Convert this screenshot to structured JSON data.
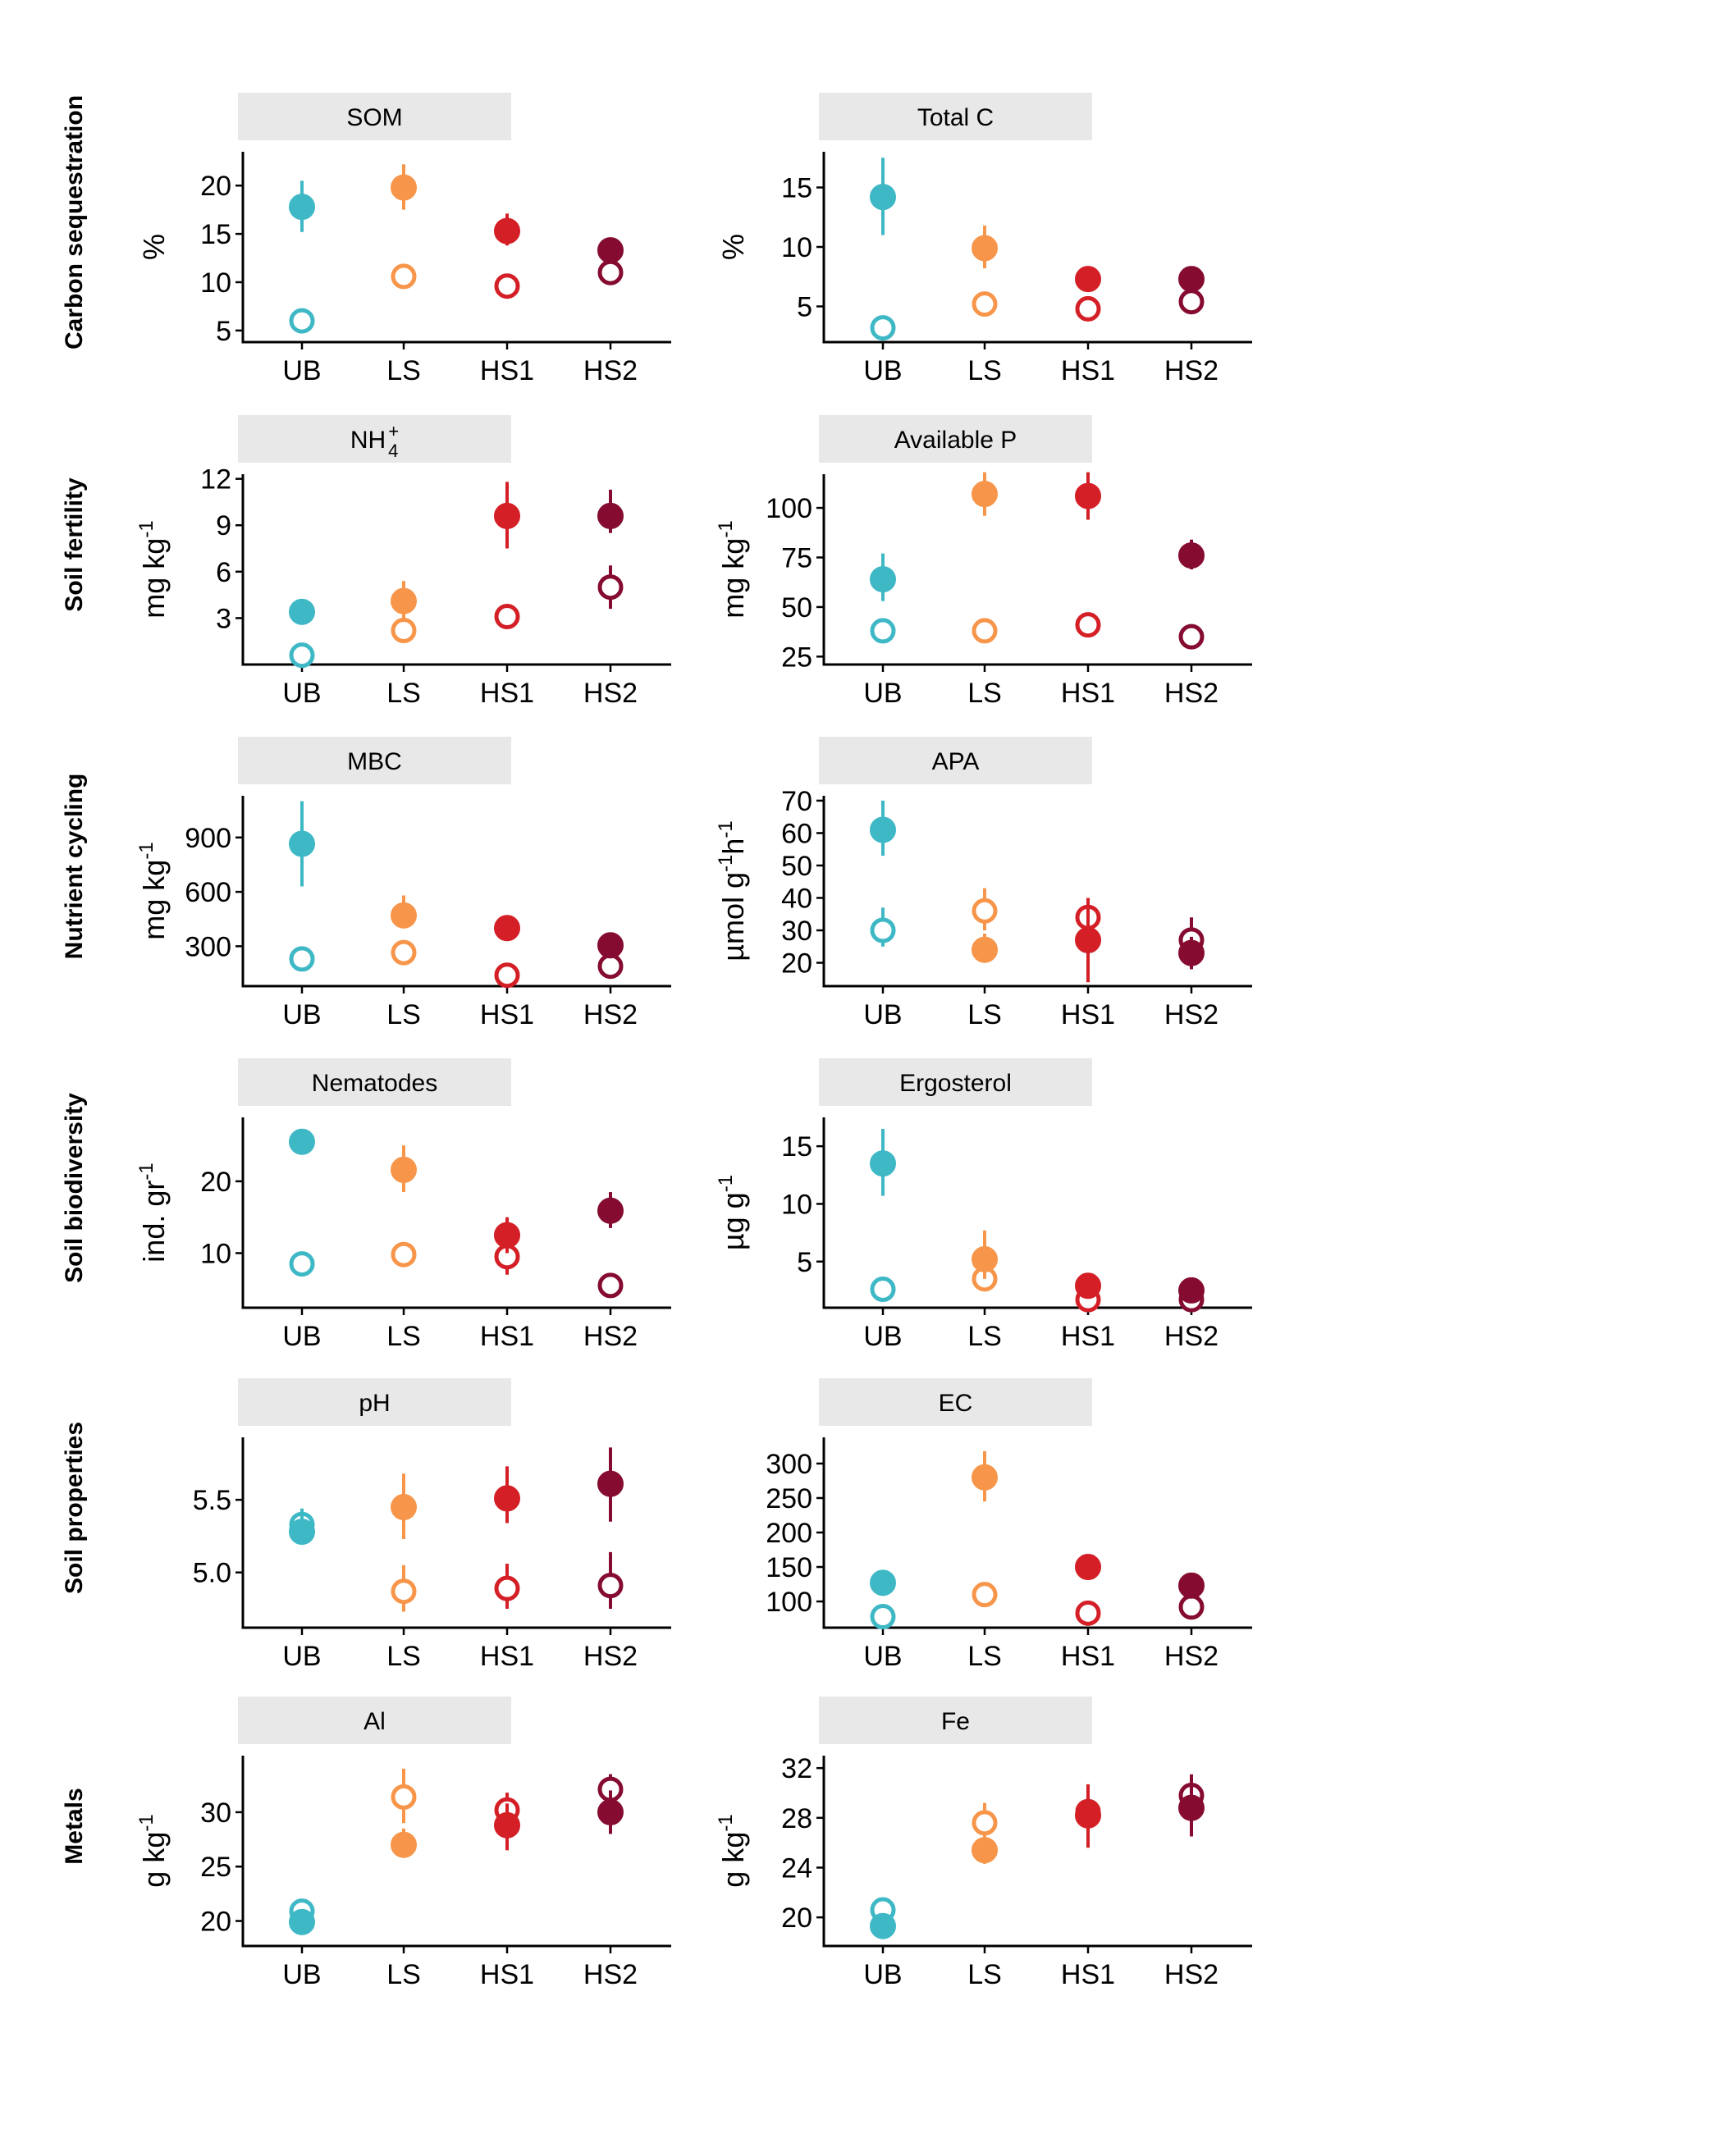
{
  "colors": {
    "UB": "#3fb8c6",
    "LS": "#f7964a",
    "HS1": "#d41f26",
    "HS2": "#850c30",
    "strip_bg": "#e8e8e8"
  },
  "legend_note": "filled circle = one treatment series, open circle = other treatment series (no printed legend)",
  "row_labels": [
    "Carbon sequestration",
    "Soil fertility",
    "Nutrient cycling",
    "Soil biodiversity",
    "Soil properties",
    "Metals"
  ],
  "chart_data": [
    {
      "type": "scatter",
      "title": "SOM",
      "ylabel": "%",
      "categories": [
        "UB",
        "LS",
        "HS1",
        "HS2"
      ],
      "yticks": [
        5,
        10,
        15,
        20
      ],
      "ylim": [
        3.8,
        23.5
      ],
      "series": [
        {
          "style": "filled",
          "values": [
            17.8,
            19.8,
            15.3,
            13.3
          ],
          "err": [
            [
              15.2,
              20.5
            ],
            [
              17.5,
              22.2
            ],
            [
              13.8,
              17.1
            ],
            [
              12.4,
              14.3
            ]
          ]
        },
        {
          "style": "open",
          "values": [
            6.0,
            10.6,
            9.6,
            11.0
          ],
          "err": null
        }
      ]
    },
    {
      "type": "scatter",
      "title": "Total C",
      "ylabel": "%",
      "categories": [
        "UB",
        "LS",
        "HS1",
        "HS2"
      ],
      "yticks": [
        5,
        10,
        15
      ],
      "ylim": [
        2.0,
        18.0
      ],
      "series": [
        {
          "style": "filled",
          "values": [
            14.2,
            9.9,
            7.3,
            7.3
          ],
          "err": [
            [
              11.0,
              17.5
            ],
            [
              8.2,
              11.8
            ],
            [
              6.4,
              8.2
            ],
            [
              6.4,
              8.2
            ]
          ]
        },
        {
          "style": "open",
          "values": [
            3.2,
            5.2,
            4.8,
            5.4
          ],
          "err": null
        }
      ]
    },
    {
      "type": "scatter",
      "title": "NH4+",
      "ylabel": "mg kg-1",
      "categories": [
        "UB",
        "LS",
        "HS1",
        "HS2"
      ],
      "yticks": [
        3,
        6,
        9,
        12
      ],
      "ylim": [
        0.0,
        12.3
      ],
      "series": [
        {
          "style": "filled",
          "values": [
            3.4,
            4.1,
            9.6,
            9.6
          ],
          "err": [
            [
              2.8,
              4.0
            ],
            [
              3.0,
              5.4
            ],
            [
              7.5,
              11.8
            ],
            [
              8.5,
              11.3
            ]
          ]
        },
        {
          "style": "open",
          "values": [
            0.6,
            2.2,
            3.1,
            5.0
          ],
          "err": [
            null,
            null,
            null,
            [
              3.6,
              6.4
            ]
          ]
        }
      ]
    },
    {
      "type": "scatter",
      "title": "Available P",
      "ylabel": "mg kg-1",
      "categories": [
        "UB",
        "LS",
        "HS1",
        "HS2"
      ],
      "yticks": [
        25,
        50,
        75,
        100
      ],
      "ylim": [
        21.0,
        117.0
      ],
      "series": [
        {
          "style": "filled",
          "values": [
            64,
            107,
            106,
            76
          ],
          "err": [
            [
              53,
              77
            ],
            [
              96,
              118
            ],
            [
              94,
              118
            ],
            [
              69,
              84
            ]
          ]
        },
        {
          "style": "open",
          "values": [
            38,
            38,
            41,
            35
          ],
          "err": null
        }
      ]
    },
    {
      "type": "scatter",
      "title": "MBC",
      "ylabel": "mg kg-1",
      "categories": [
        "UB",
        "LS",
        "HS1",
        "HS2"
      ],
      "yticks": [
        300,
        600,
        900
      ],
      "ylim": [
        80,
        1130
      ],
      "series": [
        {
          "style": "filled",
          "values": [
            865,
            470,
            400,
            305
          ],
          "err": [
            [
              630,
              1100
            ],
            [
              400,
              580
            ],
            [
              360,
              450
            ],
            [
              250,
              350
            ]
          ]
        },
        {
          "style": "open",
          "values": [
            230,
            265,
            140,
            190
          ],
          "err": null
        }
      ]
    },
    {
      "type": "scatter",
      "title": "APA",
      "ylabel": "µmol g-1h-1",
      "categories": [
        "UB",
        "LS",
        "HS1",
        "HS2"
      ],
      "yticks": [
        20,
        30,
        40,
        50,
        60,
        70
      ],
      "ylim": [
        12.8,
        71.5
      ],
      "series": [
        {
          "style": "filled",
          "values": [
            61,
            24,
            27,
            23
          ],
          "err": [
            [
              53,
              70
            ],
            [
              20,
              29
            ],
            [
              14,
              38
            ],
            [
              18,
              28
            ]
          ]
        },
        {
          "style": "open",
          "values": [
            30,
            36,
            34,
            27
          ],
          "err": [
            [
              25,
              37
            ],
            [
              30,
              43
            ],
            [
              28,
              40
            ],
            [
              22,
              34
            ]
          ]
        }
      ]
    },
    {
      "type": "scatter",
      "title": "Nematodes",
      "ylabel": "ind. gr-1",
      "categories": [
        "UB",
        "LS",
        "HS1",
        "HS2"
      ],
      "yticks": [
        10,
        20
      ],
      "ylim": [
        2.4,
        28.9
      ],
      "series": [
        {
          "style": "filled",
          "values": [
            25.5,
            21.6,
            12.5,
            15.9
          ],
          "err": [
            [
              24.8,
              26.2
            ],
            [
              18.5,
              25.0
            ],
            [
              10.0,
              15.0
            ],
            [
              13.5,
              18.5
            ]
          ]
        },
        {
          "style": "open",
          "values": [
            8.5,
            9.8,
            9.5,
            5.5
          ],
          "err": [
            null,
            null,
            [
              7.0,
              12.0
            ],
            null
          ]
        }
      ]
    },
    {
      "type": "scatter",
      "title": "Ergosterol",
      "ylabel": "µg g-1",
      "categories": [
        "UB",
        "LS",
        "HS1",
        "HS2"
      ],
      "yticks": [
        5,
        10,
        15
      ],
      "ylim": [
        1.0,
        17.5
      ],
      "series": [
        {
          "style": "filled",
          "values": [
            13.5,
            5.2,
            2.9,
            2.5
          ],
          "err": [
            [
              10.7,
              16.5
            ],
            [
              3.5,
              7.7
            ],
            [
              2.2,
              3.7
            ],
            [
              1.8,
              3.2
            ]
          ]
        },
        {
          "style": "open",
          "values": [
            2.6,
            3.5,
            1.7,
            1.7
          ],
          "err": null
        }
      ]
    },
    {
      "type": "scatter",
      "title": "pH",
      "ylabel": "",
      "categories": [
        "UB",
        "LS",
        "HS1",
        "HS2"
      ],
      "yticks": [
        5.0,
        5.5
      ],
      "ylim": [
        4.62,
        5.93
      ],
      "series": [
        {
          "style": "filled",
          "values": [
            5.28,
            5.45,
            5.51,
            5.61
          ],
          "err": [
            [
              5.22,
              5.44
            ],
            [
              5.23,
              5.68
            ],
            [
              5.34,
              5.73
            ],
            [
              5.35,
              5.86
            ]
          ]
        },
        {
          "style": "open",
          "values": [
            5.33,
            4.87,
            4.89,
            4.91
          ],
          "err": [
            null,
            [
              4.73,
              5.05
            ],
            [
              4.75,
              5.06
            ],
            [
              4.75,
              5.14
            ]
          ]
        }
      ]
    },
    {
      "type": "scatter",
      "title": "EC",
      "ylabel": "",
      "categories": [
        "UB",
        "LS",
        "HS1",
        "HS2"
      ],
      "yticks": [
        100,
        150,
        200,
        250,
        300
      ],
      "ylim": [
        62,
        338
      ],
      "series": [
        {
          "style": "filled",
          "values": [
            127,
            280,
            150,
            123
          ],
          "err": [
            [
              118,
              136
            ],
            [
              245,
              318
            ],
            [
              140,
              160
            ],
            [
              113,
              133
            ]
          ]
        },
        {
          "style": "open",
          "values": [
            78,
            110,
            83,
            92
          ],
          "err": null
        }
      ]
    },
    {
      "type": "scatter",
      "title": "Al",
      "ylabel": "g kg-1",
      "categories": [
        "UB",
        "LS",
        "HS1",
        "HS2"
      ],
      "yticks": [
        20,
        25,
        30
      ],
      "ylim": [
        17.7,
        35.2
      ],
      "series": [
        {
          "style": "filled",
          "values": [
            19.9,
            27.0,
            28.8,
            30.0
          ],
          "err": [
            [
              19.3,
              20.5
            ],
            [
              25.8,
              28.5
            ],
            [
              26.5,
              30.8
            ],
            [
              28.0,
              32.0
            ]
          ]
        },
        {
          "style": "open",
          "values": [
            20.9,
            31.4,
            30.2,
            32.1
          ],
          "err": [
            null,
            [
              29.0,
              34.0
            ],
            [
              28.8,
              31.8
            ],
            [
              30.8,
              33.5
            ]
          ]
        }
      ]
    },
    {
      "type": "scatter",
      "title": "Fe",
      "ylabel": "g kg-1",
      "categories": [
        "UB",
        "LS",
        "HS1",
        "HS2"
      ],
      "yticks": [
        20,
        24,
        28,
        32
      ],
      "ylim": [
        17.7,
        33.0
      ],
      "series": [
        {
          "style": "filled",
          "values": [
            19.3,
            25.4,
            28.2,
            28.8
          ],
          "err": [
            [
              18.5,
              20.0
            ],
            [
              24.3,
              26.5
            ],
            [
              25.6,
              30.7
            ],
            [
              26.5,
              30.8
            ]
          ]
        },
        {
          "style": "open",
          "values": [
            20.6,
            27.6,
            28.5,
            29.8
          ],
          "err": [
            null,
            [
              26.0,
              29.2
            ],
            null,
            [
              28.0,
              31.5
            ]
          ]
        }
      ]
    }
  ]
}
